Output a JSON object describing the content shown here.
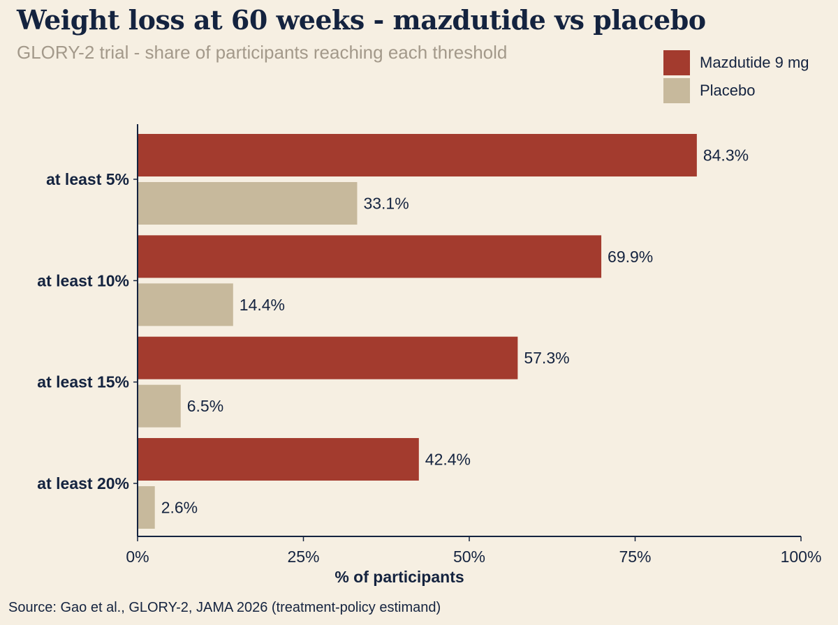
{
  "chart_data": {
    "type": "bar",
    "orientation": "horizontal",
    "title": "Weight loss at 60 weeks - mazdutide vs placebo",
    "subtitle": "GLORY-2 trial - share of participants reaching each threshold",
    "categories": [
      "at least 5%",
      "at least 10%",
      "at least 15%",
      "at least 20%"
    ],
    "series": [
      {
        "name": "Mazdutide 9 mg",
        "color": "#a33b2e",
        "values": [
          84.3,
          69.9,
          57.3,
          42.4
        ],
        "labels": [
          "84.3%",
          "69.9%",
          "57.3%",
          "42.4%"
        ]
      },
      {
        "name": "Placebo",
        "color": "#c7b99c",
        "values": [
          33.1,
          14.4,
          6.5,
          2.6
        ],
        "labels": [
          "33.1%",
          "14.4%",
          "6.5%",
          "2.6%"
        ]
      }
    ],
    "xlabel": "% of participants",
    "ylabel": "",
    "xlim": [
      0,
      100
    ],
    "xticks": [
      0,
      25,
      50,
      75,
      100
    ],
    "xtick_labels": [
      "0%",
      "25%",
      "50%",
      "75%",
      "100%"
    ],
    "grid": false,
    "legend_position": "top-right",
    "source": "Source: Gao et al., GLORY-2, JAMA 2026 (treatment-policy estimand)"
  }
}
